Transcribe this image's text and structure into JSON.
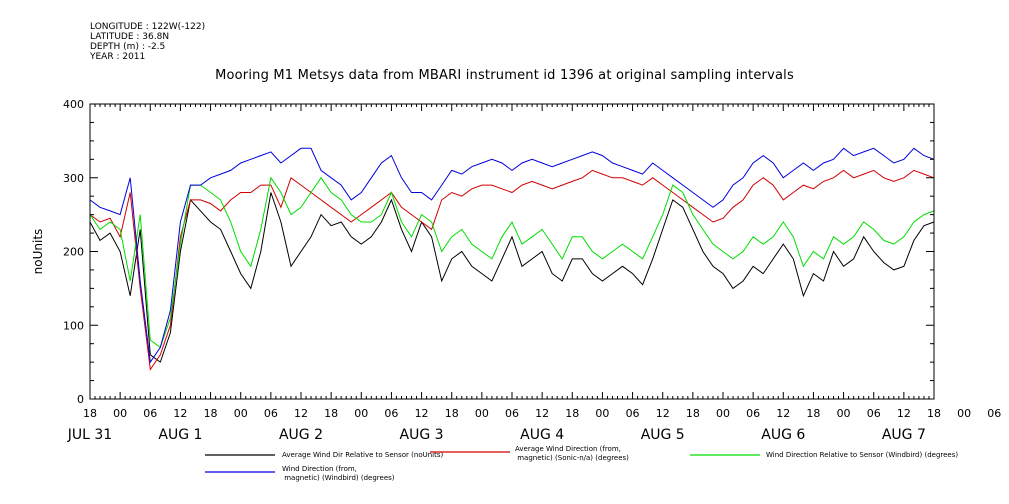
{
  "meta": {
    "longitude": "LONGITUDE : 122W(-122)",
    "latitude": "LATITUDE : 36.8N",
    "depth": "DEPTH (m) : -2.5",
    "year": "YEAR : 2011"
  },
  "chart_data": {
    "type": "line",
    "title": "Mooring M1 Metsys data from MBARI instrument id 1396 at original sampling intervals",
    "ylabel": "noUnits",
    "ylim": [
      0,
      400
    ],
    "yticks": [
      0,
      100,
      200,
      300,
      400
    ],
    "xlim": [
      0,
      168
    ],
    "hour_ticks": [
      "18",
      "00",
      "06",
      "12",
      "18",
      "00",
      "06",
      "12",
      "18",
      "00",
      "06",
      "12",
      "18",
      "00",
      "06",
      "12",
      "18",
      "00",
      "06",
      "12",
      "18",
      "00",
      "06",
      "12",
      "18",
      "00",
      "06",
      "12",
      "18",
      "00",
      "06",
      "12",
      "18"
    ],
    "date_labels": [
      {
        "label": "JUL 31",
        "at": 0
      },
      {
        "label": "AUG  1",
        "at": 18
      },
      {
        "label": "AUG  2",
        "at": 42
      },
      {
        "label": "AUG  3",
        "at": 66
      },
      {
        "label": "AUG  4",
        "at": 90
      },
      {
        "label": "AUG  5",
        "at": 114
      },
      {
        "label": "AUG  6",
        "at": 138
      },
      {
        "label": "AUG  7",
        "at": 162
      }
    ],
    "grid": false,
    "legend_position": "bottom",
    "series": [
      {
        "name": "Average Wind Dir Relative to Sensor (noUnits)",
        "color": "#000000",
        "x": [
          0,
          2,
          4,
          6,
          8,
          10,
          12,
          14,
          16,
          18,
          20,
          22,
          24,
          26,
          28,
          30,
          32,
          34,
          36,
          38,
          40,
          42,
          44,
          46,
          48,
          50,
          52,
          54,
          56,
          58,
          60,
          62,
          64,
          66,
          68,
          70,
          72,
          74,
          76,
          78,
          80,
          82,
          84,
          86,
          88,
          90,
          92,
          94,
          96,
          98,
          100,
          102,
          104,
          106,
          108,
          110,
          112,
          114,
          116,
          118,
          120,
          122,
          124,
          126,
          128,
          130,
          132,
          134,
          136,
          138,
          140,
          142,
          144,
          146,
          148,
          150,
          152,
          154,
          156,
          158,
          160,
          162,
          164,
          166,
          168
        ],
        "y": [
          240,
          215,
          225,
          200,
          140,
          230,
          60,
          50,
          90,
          200,
          270,
          255,
          240,
          230,
          200,
          170,
          150,
          200,
          280,
          240,
          180,
          200,
          220,
          250,
          235,
          240,
          220,
          210,
          220,
          240,
          270,
          230,
          200,
          240,
          220,
          160,
          190,
          200,
          180,
          170,
          160,
          190,
          220,
          180,
          190,
          200,
          170,
          160,
          190,
          190,
          170,
          160,
          170,
          180,
          170,
          155,
          190,
          230,
          270,
          260,
          230,
          200,
          180,
          170,
          150,
          160,
          180,
          170,
          190,
          210,
          190,
          140,
          170,
          160,
          200,
          180,
          190,
          220,
          200,
          185,
          175,
          180,
          215,
          235,
          240
        ]
      },
      {
        "name": "Average Wind Direction (from, magnetic) (Sonic-n/a) (degrees)",
        "color": "#d00000",
        "x": [
          0,
          2,
          4,
          6,
          8,
          10,
          12,
          14,
          16,
          18,
          20,
          22,
          24,
          26,
          28,
          30,
          32,
          34,
          36,
          38,
          40,
          42,
          44,
          46,
          48,
          50,
          52,
          54,
          56,
          58,
          60,
          62,
          64,
          66,
          68,
          70,
          72,
          74,
          76,
          78,
          80,
          82,
          84,
          86,
          88,
          90,
          92,
          94,
          96,
          98,
          100,
          102,
          104,
          106,
          108,
          110,
          112,
          114,
          116,
          118,
          120,
          122,
          124,
          126,
          128,
          130,
          132,
          134,
          136,
          138,
          140,
          142,
          144,
          146,
          148,
          150,
          152,
          154,
          156,
          158,
          160,
          162,
          164,
          166,
          168
        ],
        "y": [
          250,
          240,
          245,
          220,
          280,
          150,
          40,
          60,
          100,
          220,
          270,
          270,
          265,
          255,
          270,
          280,
          280,
          290,
          290,
          260,
          300,
          290,
          280,
          270,
          260,
          250,
          240,
          250,
          260,
          270,
          280,
          260,
          250,
          240,
          230,
          270,
          280,
          275,
          285,
          290,
          290,
          285,
          280,
          290,
          295,
          290,
          285,
          290,
          295,
          300,
          310,
          305,
          300,
          300,
          295,
          290,
          300,
          290,
          280,
          270,
          260,
          250,
          240,
          245,
          260,
          270,
          290,
          300,
          290,
          270,
          280,
          290,
          285,
          295,
          300,
          310,
          300,
          305,
          310,
          300,
          295,
          300,
          310,
          305,
          300
        ]
      },
      {
        "name": "Wind Direction Relative to Sensor (Windbird) (degrees)",
        "color": "#00dd00",
        "x": [
          0,
          2,
          4,
          6,
          8,
          10,
          12,
          14,
          16,
          18,
          20,
          22,
          24,
          26,
          28,
          30,
          32,
          34,
          36,
          38,
          40,
          42,
          44,
          46,
          48,
          50,
          52,
          54,
          56,
          58,
          60,
          62,
          64,
          66,
          68,
          70,
          72,
          74,
          76,
          78,
          80,
          82,
          84,
          86,
          88,
          90,
          92,
          94,
          96,
          98,
          100,
          102,
          104,
          106,
          108,
          110,
          112,
          114,
          116,
          118,
          120,
          122,
          124,
          126,
          128,
          130,
          132,
          134,
          136,
          138,
          140,
          142,
          144,
          146,
          148,
          150,
          152,
          154,
          156,
          158,
          160,
          162,
          164,
          166,
          168
        ],
        "y": [
          250,
          230,
          240,
          230,
          160,
          250,
          80,
          70,
          110,
          210,
          290,
          290,
          280,
          270,
          240,
          200,
          180,
          230,
          300,
          280,
          250,
          260,
          280,
          300,
          280,
          270,
          250,
          240,
          240,
          250,
          280,
          240,
          220,
          250,
          240,
          200,
          220,
          230,
          210,
          200,
          190,
          220,
          240,
          210,
          220,
          230,
          210,
          190,
          220,
          220,
          200,
          190,
          200,
          210,
          200,
          190,
          220,
          250,
          290,
          280,
          250,
          230,
          210,
          200,
          190,
          200,
          220,
          210,
          220,
          240,
          220,
          180,
          200,
          190,
          220,
          210,
          220,
          240,
          230,
          215,
          210,
          220,
          240,
          250,
          255
        ]
      },
      {
        "name": "Wind Direction (from, magnetic) (Windbird) (degrees)",
        "color": "#0000dd",
        "x": [
          0,
          2,
          4,
          6,
          8,
          10,
          12,
          14,
          16,
          18,
          20,
          22,
          24,
          26,
          28,
          30,
          32,
          34,
          36,
          38,
          40,
          42,
          44,
          46,
          48,
          50,
          52,
          54,
          56,
          58,
          60,
          62,
          64,
          66,
          68,
          70,
          72,
          74,
          76,
          78,
          80,
          82,
          84,
          86,
          88,
          90,
          92,
          94,
          96,
          98,
          100,
          102,
          104,
          106,
          108,
          110,
          112,
          114,
          116,
          118,
          120,
          122,
          124,
          126,
          128,
          130,
          132,
          134,
          136,
          138,
          140,
          142,
          144,
          146,
          148,
          150,
          152,
          154,
          156,
          158,
          160,
          162,
          164,
          166,
          168
        ],
        "y": [
          270,
          260,
          255,
          250,
          300,
          160,
          50,
          70,
          120,
          240,
          290,
          290,
          300,
          305,
          310,
          320,
          325,
          330,
          335,
          320,
          330,
          340,
          340,
          310,
          300,
          290,
          270,
          280,
          300,
          320,
          330,
          300,
          280,
          280,
          270,
          290,
          310,
          305,
          315,
          320,
          325,
          320,
          310,
          320,
          325,
          320,
          315,
          320,
          325,
          330,
          335,
          330,
          320,
          315,
          310,
          305,
          320,
          310,
          300,
          290,
          280,
          270,
          260,
          270,
          290,
          300,
          320,
          330,
          320,
          300,
          310,
          320,
          310,
          320,
          325,
          340,
          330,
          335,
          340,
          330,
          320,
          325,
          340,
          330,
          325
        ]
      }
    ],
    "legend": [
      {
        "text": "Average Wind Dir Relative to Sensor (noUnits)",
        "color": "#000000"
      },
      {
        "text": "Average Wind Direction (from,\n     magnetic) (Sonic-n/a) (degrees)",
        "color": "#d00000"
      },
      {
        "text": "Wind Direction Relative to Sensor (Windbird) (degrees)",
        "color": "#00dd00"
      },
      {
        "text": "Wind Direction (from,\n   magnetic) (Windbird) (degrees)",
        "color": "#0000dd"
      }
    ]
  }
}
